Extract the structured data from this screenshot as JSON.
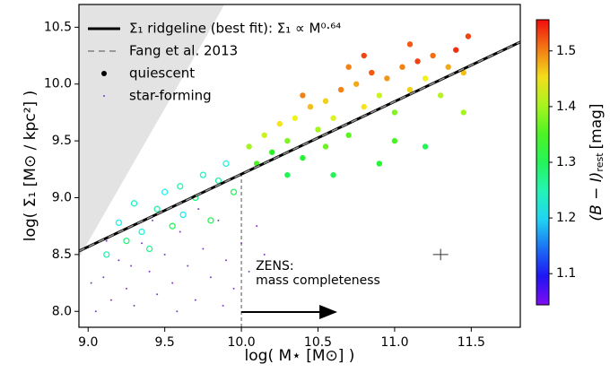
{
  "chart_data": {
    "type": "scatter",
    "xlabel": "log( M⋆ [M⊙] )",
    "ylabel": "log( Σ₁ [M⊙ / kpc²] )",
    "xlim": [
      8.94,
      11.82
    ],
    "ylim": [
      7.86,
      10.7
    ],
    "xticks": [
      {
        "value": 9.0,
        "label": "9.0"
      },
      {
        "value": 9.5,
        "label": "9.5"
      },
      {
        "value": 10.0,
        "label": "10.0"
      },
      {
        "value": 10.5,
        "label": "10.5"
      },
      {
        "value": 11.0,
        "label": "11.0"
      },
      {
        "value": 11.5,
        "label": "11.5"
      }
    ],
    "yticks": [
      {
        "value": 8.0,
        "label": "8.0"
      },
      {
        "value": 8.5,
        "label": "8.5"
      },
      {
        "value": 9.0,
        "label": "9.0"
      },
      {
        "value": 9.5,
        "label": "9.5"
      },
      {
        "value": 10.0,
        "label": "10.0"
      },
      {
        "value": 10.5,
        "label": "10.5"
      }
    ],
    "excluded_region": {
      "x": [
        8.94,
        8.94,
        9.89
      ],
      "y": [
        8.47,
        10.7,
        10.7
      ],
      "color": "#e3e3e3"
    },
    "lines": [
      {
        "name": "Σ₁ ridgeline (best fit): Σ₁ ∝ M⁰·⁶⁴",
        "x": [
          8.94,
          11.82
        ],
        "y": [
          8.53,
          10.37
        ],
        "color": "#000000",
        "dash": false
      },
      {
        "name": "Fang et al. 2013",
        "x": [
          8.94,
          11.82
        ],
        "y": [
          8.53,
          10.37
        ],
        "color": "#999999",
        "dash": true
      }
    ],
    "series": [
      {
        "name": "quiescent",
        "marker": "circle",
        "x": [
          9.12,
          9.2,
          9.25,
          9.3,
          9.35,
          9.4,
          9.45,
          9.5,
          9.55,
          9.6,
          9.62,
          9.7,
          9.75,
          9.8,
          9.85,
          9.9,
          9.95,
          10.05,
          10.1,
          10.15,
          10.2,
          10.25,
          10.3,
          10.35,
          10.4,
          10.45,
          10.5,
          10.55,
          10.6,
          10.65,
          10.7,
          10.75,
          10.8,
          10.85,
          10.9,
          10.95,
          11.0,
          11.05,
          11.1,
          11.15,
          11.2,
          11.25,
          11.3,
          11.35,
          11.4,
          11.45,
          11.48,
          10.6,
          10.9,
          11.0,
          11.2,
          10.4,
          10.8,
          10.3,
          11.45,
          10.55,
          11.1,
          10.7
        ],
        "y": [
          8.5,
          8.78,
          8.62,
          8.95,
          8.7,
          8.55,
          8.9,
          9.05,
          8.75,
          9.1,
          8.85,
          9.0,
          9.2,
          8.8,
          9.15,
          9.3,
          9.05,
          9.45,
          9.3,
          9.55,
          9.4,
          9.65,
          9.5,
          9.7,
          9.35,
          9.8,
          9.6,
          9.85,
          9.7,
          9.95,
          9.55,
          10.0,
          9.8,
          10.1,
          9.9,
          10.05,
          9.75,
          10.15,
          9.95,
          10.2,
          10.05,
          10.25,
          9.9,
          10.15,
          10.3,
          10.1,
          10.42,
          9.2,
          9.3,
          9.5,
          9.45,
          9.9,
          10.25,
          9.2,
          9.75,
          9.45,
          10.35,
          10.15
        ],
        "colors": [
          1.25,
          1.22,
          1.28,
          1.24,
          1.23,
          1.27,
          1.26,
          1.22,
          1.3,
          1.25,
          1.21,
          1.28,
          1.24,
          1.3,
          1.26,
          1.23,
          1.3,
          1.4,
          1.35,
          1.42,
          1.33,
          1.45,
          1.38,
          1.44,
          1.32,
          1.47,
          1.4,
          1.46,
          1.43,
          1.5,
          1.36,
          1.48,
          1.45,
          1.52,
          1.42,
          1.49,
          1.38,
          1.5,
          1.46,
          1.53,
          1.44,
          1.51,
          1.41,
          1.48,
          1.54,
          1.47,
          1.53,
          1.3,
          1.32,
          1.35,
          1.3,
          1.5,
          1.53,
          1.3,
          1.4,
          1.37,
          1.52,
          1.5
        ]
      },
      {
        "name": "star-forming",
        "marker": "dot",
        "color": "#7d3fc4",
        "x": [
          9.05,
          9.1,
          9.15,
          9.2,
          9.25,
          9.3,
          9.35,
          9.4,
          9.45,
          9.5,
          9.55,
          9.6,
          9.65,
          9.7,
          9.75,
          9.8,
          9.85,
          9.9,
          9.95,
          10.0,
          10.05,
          10.1,
          9.12,
          9.28,
          9.42,
          9.58,
          9.72,
          9.88,
          10.15,
          9.02
        ],
        "y": [
          8.0,
          8.3,
          8.1,
          8.45,
          8.2,
          8.05,
          8.6,
          8.35,
          8.15,
          8.5,
          8.25,
          8.7,
          8.4,
          8.1,
          8.55,
          8.3,
          8.8,
          8.45,
          8.2,
          8.6,
          8.35,
          8.75,
          8.62,
          8.4,
          8.8,
          8.0,
          8.9,
          8.05,
          8.5,
          8.25
        ]
      }
    ],
    "completeness_mass": 10.0,
    "annotation": [
      "ZENS:",
      "mass completeness"
    ],
    "error_bar": {
      "x": 11.3,
      "y": 8.5,
      "xerr": 0.05,
      "yerr": 0.05
    },
    "colorbar": {
      "clim": [
        1.044,
        1.556
      ],
      "ticks": [
        1.1,
        1.2,
        1.3,
        1.4,
        1.5
      ],
      "label": "(B − I)",
      "label_sub": "rest",
      "label_unit": "[mag]"
    }
  }
}
